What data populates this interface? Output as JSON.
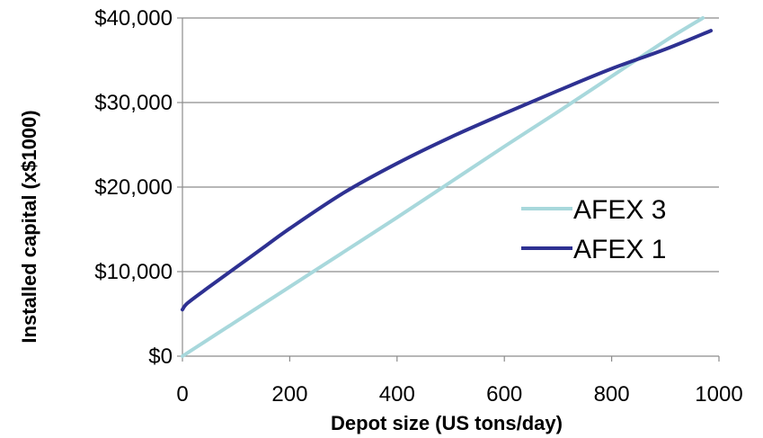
{
  "chart_data": {
    "type": "line",
    "title": "",
    "xlabel": "Depot size (US tons/day)",
    "ylabel": "Installed capital (x$1000)",
    "xlim": [
      0,
      1000
    ],
    "ylim": [
      0,
      40000
    ],
    "xticks": [
      0,
      200,
      400,
      600,
      800,
      1000
    ],
    "xtick_labels": [
      "0",
      "200",
      "400",
      "600",
      "800",
      "1000"
    ],
    "yticks": [
      0,
      10000,
      20000,
      30000,
      40000
    ],
    "ytick_labels": [
      "$0",
      "$10,000",
      "$20,000",
      "$30,000",
      "$40,000"
    ],
    "grid": "horizontal",
    "legend_position": "right",
    "series": [
      {
        "name": "AFEX 3",
        "color": "#a8d8dc",
        "points": [
          [
            0,
            0
          ],
          [
            100,
            4100
          ],
          [
            200,
            8200
          ],
          [
            300,
            12300
          ],
          [
            400,
            16400
          ],
          [
            500,
            20600
          ],
          [
            600,
            24800
          ],
          [
            700,
            28900
          ],
          [
            800,
            33100
          ],
          [
            900,
            37300
          ],
          [
            970,
            40000
          ]
        ]
      },
      {
        "name": "AFEX 1",
        "color": "#2e3192",
        "points": [
          [
            0,
            5500
          ],
          [
            10,
            6300
          ],
          [
            50,
            8200
          ],
          [
            100,
            10500
          ],
          [
            150,
            12800
          ],
          [
            200,
            15100
          ],
          [
            300,
            19300
          ],
          [
            400,
            22800
          ],
          [
            500,
            25900
          ],
          [
            600,
            28700
          ],
          [
            700,
            31400
          ],
          [
            800,
            34000
          ],
          [
            900,
            36300
          ],
          [
            985,
            38500
          ]
        ]
      }
    ]
  }
}
